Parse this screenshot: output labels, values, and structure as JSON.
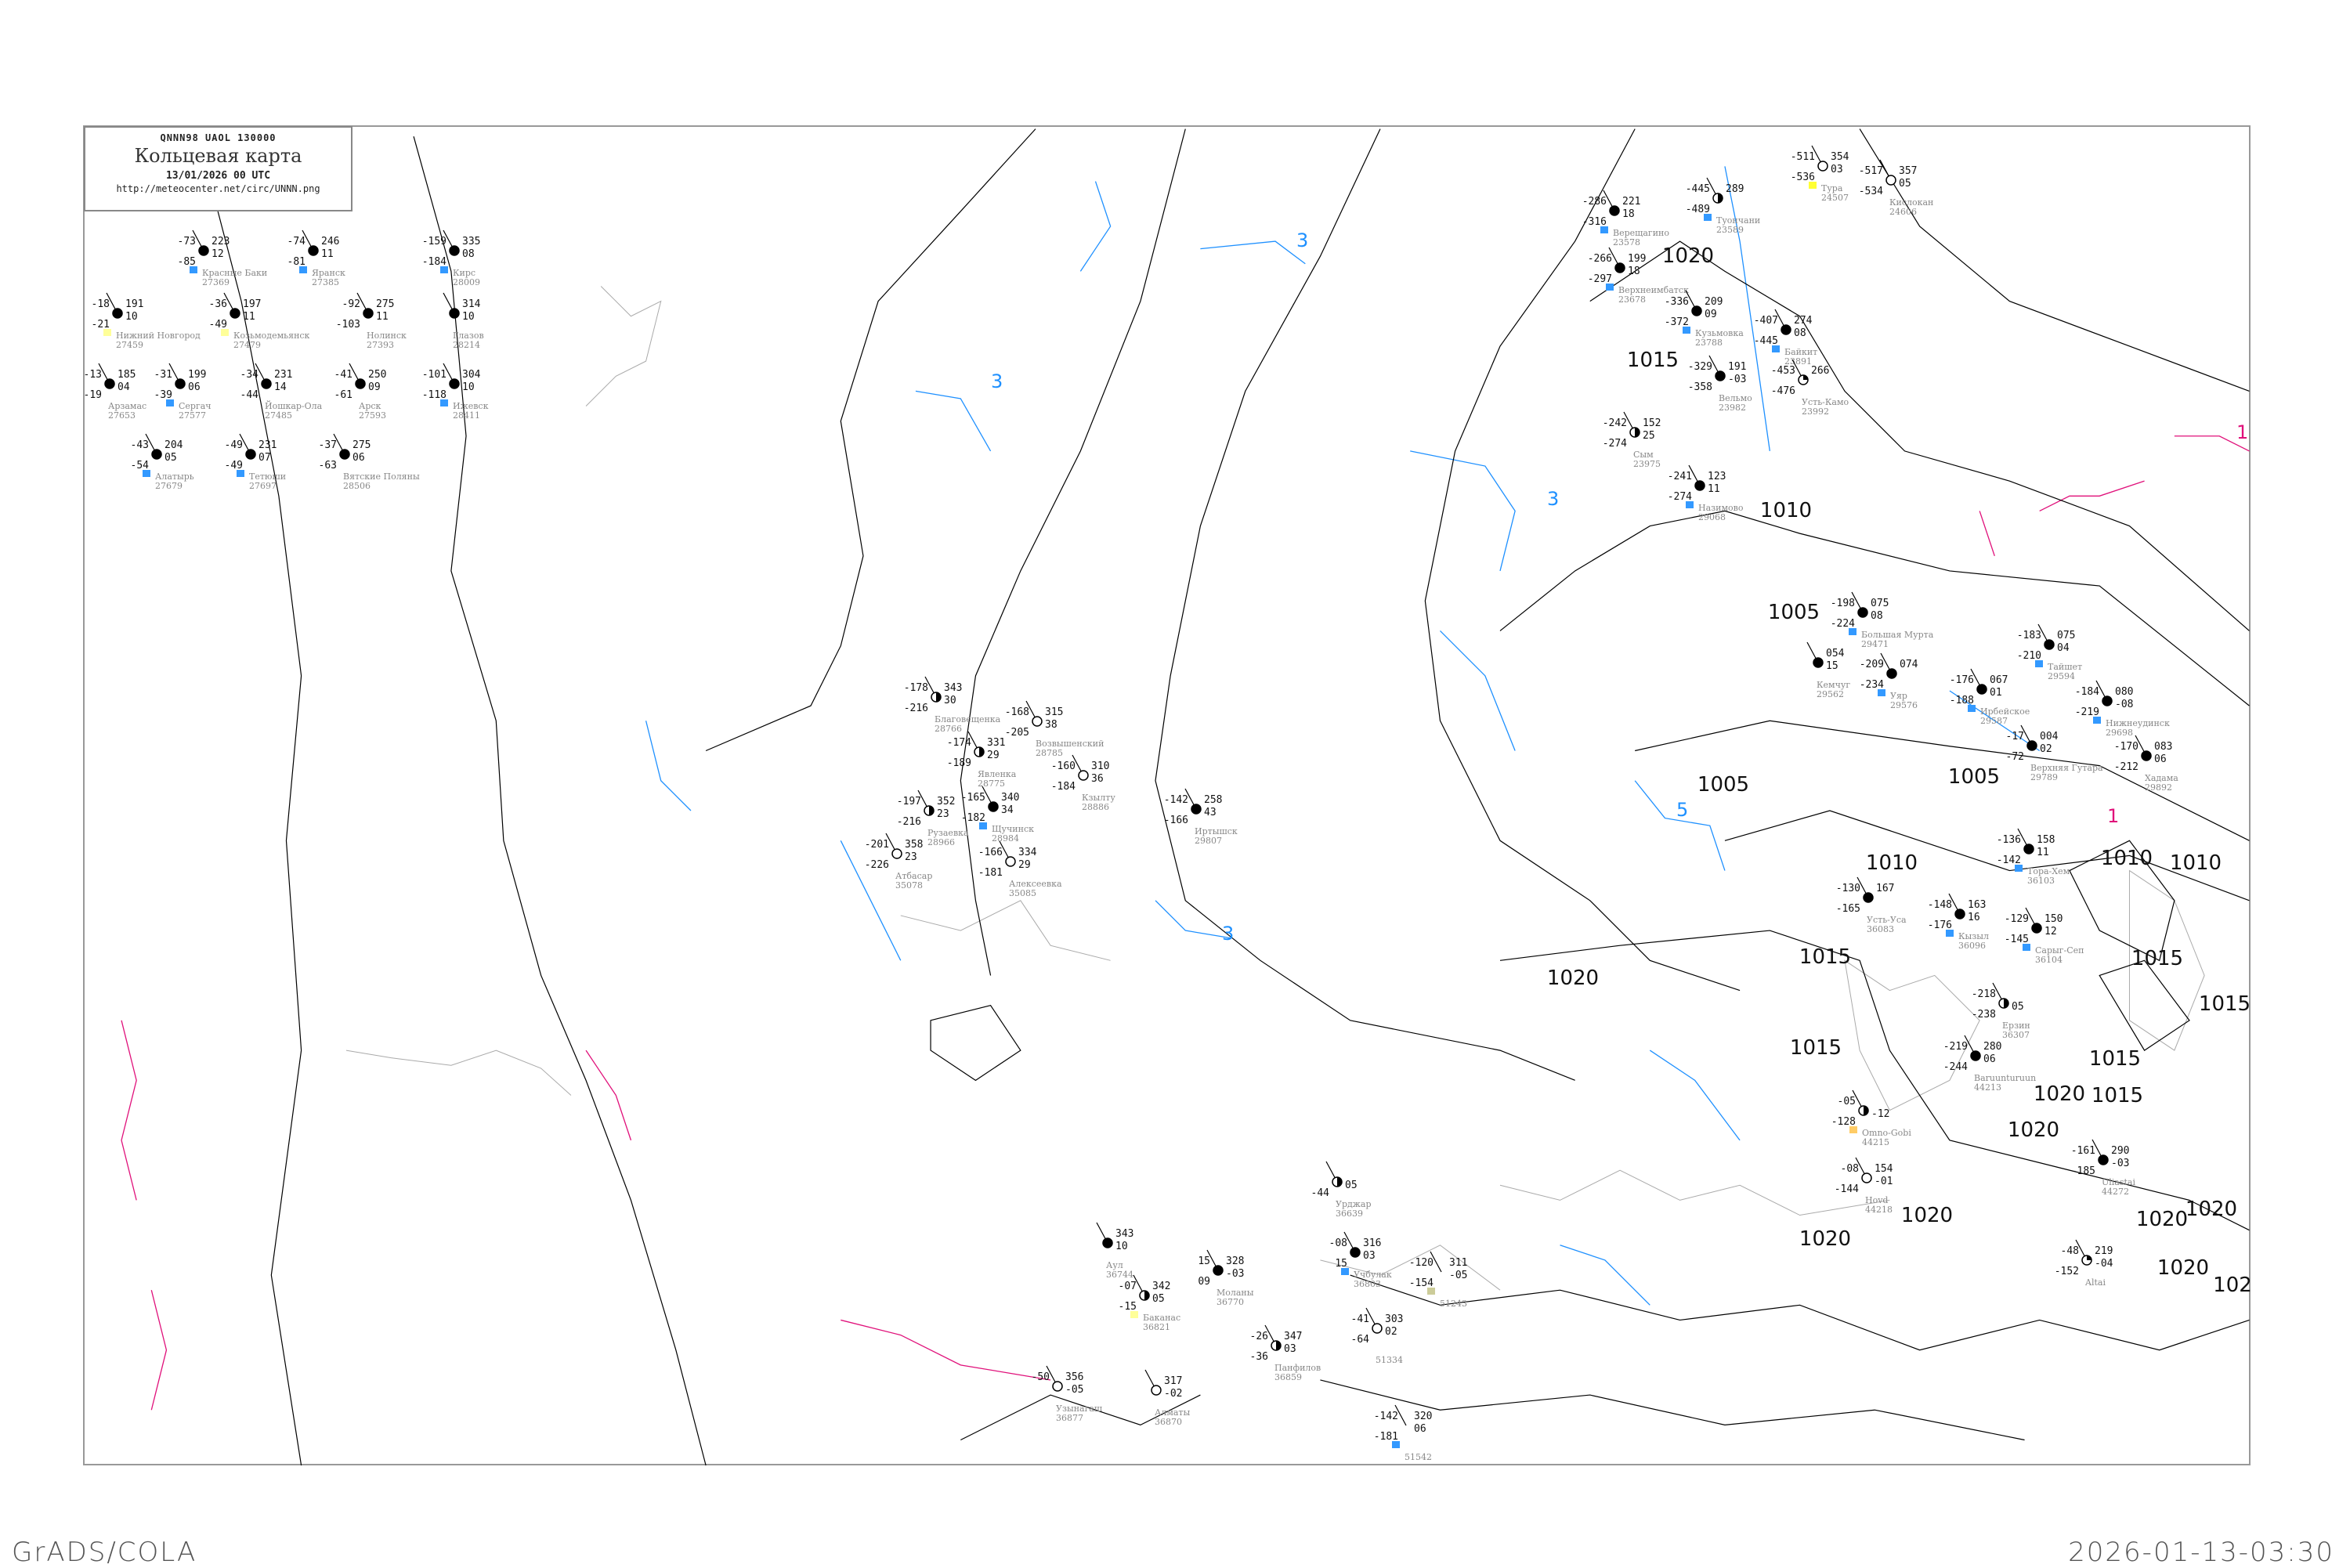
{
  "header": {
    "codes": "QNNN98   UAOL   130000",
    "title": "Кольцевая карта",
    "datetime": "13/01/2026 00 UTC",
    "url": "http://meteocenter.net/circ/UNNN.png"
  },
  "footer": {
    "left": "GrADS/COLA",
    "right": "2026-01-13-03:30"
  },
  "colors": {
    "isobar": "#000000",
    "isotherm_cold": "#1e90ff",
    "isotherm_warm": "#e0107a",
    "coast": "#aaaaaa",
    "station_name": "#888888",
    "precip_marker": "#3399ff"
  },
  "isobar_labels": [
    "1020",
    "1015",
    "1010",
    "1005",
    "1005",
    "1005",
    "1010",
    "1015",
    "1020",
    "1015",
    "1020",
    "1015",
    "1020",
    "1020",
    "102",
    "1015",
    "1010",
    "1010",
    "1015",
    "1015",
    "1020",
    "1020",
    "1020",
    "1020"
  ],
  "isotherm_labels": [
    "3",
    "3",
    "3",
    "5",
    "3",
    "1",
    "1"
  ],
  "stations": [
    {
      "name": "Нижний Новгород",
      "id": "27459",
      "t": "-18",
      "td": "-21",
      "p": "191",
      "dp": "10",
      "cover": "full",
      "marker": "#ffff99"
    },
    {
      "name": "Арзамас",
      "id": "27653",
      "t": "-13",
      "td": "-19",
      "p": "185",
      "dp": "04",
      "cover": "full"
    },
    {
      "name": "Красные Баки",
      "id": "27369",
      "t": "-73",
      "td": "-85",
      "p": "223",
      "dp": "12",
      "cover": "full",
      "marker": "#3399ff"
    },
    {
      "name": "Козьмодемьянск",
      "id": "27479",
      "t": "-36",
      "td": "-49",
      "p": "197",
      "dp": "11",
      "cover": "full",
      "marker": "#ffff99"
    },
    {
      "name": "Йошкар-Ола",
      "id": "27485",
      "t": "-34",
      "td": "-44",
      "p": "231",
      "dp": "14",
      "cover": "full"
    },
    {
      "name": "Сергач",
      "id": "27577",
      "t": "-31",
      "td": "-39",
      "p": "199",
      "dp": "06",
      "cover": "full",
      "marker": "#3399ff"
    },
    {
      "name": "Алатырь",
      "id": "27679",
      "t": "-43",
      "td": "-54",
      "p": "204",
      "dp": "05",
      "cover": "full",
      "marker": "#3399ff"
    },
    {
      "name": "Тетюши",
      "id": "27697",
      "t": "-49",
      "td": "-49",
      "p": "231",
      "dp": "07",
      "cover": "full",
      "marker": "#3399ff"
    },
    {
      "name": "Глазов",
      "id": "28214",
      "t": "",
      "td": "",
      "p": "314",
      "dp": "10",
      "cover": "full"
    },
    {
      "name": "Ижевск",
      "id": "28411",
      "t": "-101",
      "td": "-118",
      "p": "304",
      "dp": "10",
      "cover": "full",
      "marker": "#3399ff"
    },
    {
      "name": "Кирс",
      "id": "28009",
      "t": "-159",
      "td": "-184",
      "p": "335",
      "dp": "08",
      "cover": "full",
      "marker": "#3399ff"
    },
    {
      "name": "Нолинск",
      "id": "27393",
      "t": "-92",
      "td": "-103",
      "p": "275",
      "dp": "11",
      "cover": "full"
    },
    {
      "name": "Яранск",
      "id": "27385",
      "t": "-74",
      "td": "-81",
      "p": "246",
      "dp": "11",
      "cover": "full",
      "marker": "#3399ff"
    },
    {
      "name": "Арск",
      "id": "27593",
      "t": "-41",
      "td": "-61",
      "p": "250",
      "dp": "09",
      "cover": "full"
    },
    {
      "name": "Вятские Поляны",
      "id": "28506",
      "t": "-37",
      "td": "-63",
      "p": "275",
      "dp": "06",
      "cover": "full"
    },
    {
      "name": "Благовещенка",
      "id": "28766",
      "t": "-178",
      "td": "-216",
      "p": "343",
      "dp": "30",
      "cover": "half"
    },
    {
      "name": "Явленка",
      "id": "28775",
      "t": "-174",
      "td": "-189",
      "p": "331",
      "dp": "29",
      "cover": "half"
    },
    {
      "name": "Щучинск",
      "id": "28984",
      "t": "-165",
      "td": "-182",
      "p": "340",
      "dp": "34",
      "cover": "full",
      "marker": "#3399ff"
    },
    {
      "name": "Возвышенский",
      "id": "28785",
      "t": "-168",
      "td": "-205",
      "p": "315",
      "dp": "38",
      "cover": "empty"
    },
    {
      "name": "Кзылту",
      "id": "28886",
      "t": "-160",
      "td": "-184",
      "p": "310",
      "dp": "36",
      "cover": "empty"
    },
    {
      "name": "Рузаевка",
      "id": "28966",
      "t": "-197",
      "td": "-216",
      "p": "352",
      "dp": "23",
      "cover": "half"
    },
    {
      "name": "Атбасар",
      "id": "35078",
      "t": "-201",
      "td": "-226",
      "p": "358",
      "dp": "23",
      "cover": "empty"
    },
    {
      "name": "Алексеевка",
      "id": "35085",
      "t": "-166",
      "td": "-181",
      "p": "334",
      "dp": "29",
      "cover": "empty"
    },
    {
      "name": "Иртышск",
      "id": "29807",
      "t": "-142",
      "td": "-166",
      "p": "258",
      "dp": "43",
      "cover": "full"
    },
    {
      "name": "Верещагино",
      "id": "23578",
      "t": "-286",
      "td": "-316",
      "p": "221",
      "dp": "18",
      "cover": "full",
      "marker": "#3399ff"
    },
    {
      "name": "Верхнеимбатск",
      "id": "23678",
      "t": "-266",
      "td": "-297",
      "p": "199",
      "dp": "18",
      "cover": "full",
      "marker": "#3399ff"
    },
    {
      "name": "Туончани",
      "id": "23589",
      "t": "-445",
      "td": "-489",
      "p": "289",
      "dp": "",
      "cover": "half",
      "marker": "#3399ff"
    },
    {
      "name": "Кузьмовка",
      "id": "23788",
      "t": "-336",
      "td": "-372",
      "p": "209",
      "dp": "09",
      "cover": "full",
      "marker": "#3399ff"
    },
    {
      "name": "Байкит",
      "id": "23891",
      "t": "-407",
      "td": "-445",
      "p": "274",
      "dp": "08",
      "cover": "full",
      "marker": "#3399ff"
    },
    {
      "name": "Тура",
      "id": "24507",
      "t": "-511",
      "td": "-536",
      "p": "354",
      "dp": "03",
      "cover": "empty",
      "marker": "#ffff33"
    },
    {
      "name": "Кислокан",
      "id": "24606",
      "t": "-517",
      "td": "-534",
      "p": "357",
      "dp": "05",
      "cover": "empty"
    },
    {
      "name": "Усть-Камо",
      "id": "23992",
      "t": "-453",
      "td": "-476",
      "p": "266",
      "dp": "",
      "cover": "quarter"
    },
    {
      "name": "Вельмо",
      "id": "23982",
      "t": "-329",
      "td": "-358",
      "p": "191",
      "dp": "-03",
      "cover": "full"
    },
    {
      "name": "Сым",
      "id": "23975",
      "t": "-242",
      "td": "-274",
      "p": "152",
      "dp": "25",
      "cover": "half"
    },
    {
      "name": "Назимово",
      "id": "29068",
      "t": "-241",
      "td": "-274",
      "p": "123",
      "dp": "11",
      "cover": "full",
      "marker": "#3399ff"
    },
    {
      "name": "Большая Мурта",
      "id": "29471",
      "t": "-198",
      "td": "-224",
      "p": "075",
      "dp": "08",
      "cover": "full",
      "marker": "#3399ff"
    },
    {
      "name": "Уяр",
      "id": "29576",
      "t": "-209",
      "td": "-234",
      "p": "074",
      "dp": "",
      "cover": "full",
      "marker": "#3399ff"
    },
    {
      "name": "Ирбейское",
      "id": "29587",
      "t": "-176",
      "td": "-188",
      "p": "067",
      "dp": "01",
      "cover": "full",
      "marker": "#3399ff"
    },
    {
      "name": "Тайшет",
      "id": "29594",
      "t": "-183",
      "td": "-210",
      "p": "075",
      "dp": "04",
      "cover": "full",
      "marker": "#3399ff"
    },
    {
      "name": "Нижнеудинск",
      "id": "29698",
      "t": "-184",
      "td": "-219",
      "p": "080",
      "dp": "-08",
      "cover": "full",
      "marker": "#3399ff"
    },
    {
      "name": "Кемчуг",
      "id": "29562",
      "t": "",
      "td": "",
      "p": "054",
      "dp": "15",
      "cover": "full"
    },
    {
      "name": "Верхняя Гутара",
      "id": "29789",
      "t": "-17",
      "td": "-72",
      "p": "004",
      "dp": "02",
      "cover": "full"
    },
    {
      "name": "Хадама",
      "id": "29892",
      "t": "-170",
      "td": "-212",
      "p": "083",
      "dp": "06",
      "cover": "full"
    },
    {
      "name": "Тора-Хем",
      "id": "36103",
      "t": "-136",
      "td": "-142",
      "p": "158",
      "dp": "11",
      "cover": "full",
      "marker": "#3399ff"
    },
    {
      "name": "Кызыл",
      "id": "36096",
      "t": "-148",
      "td": "-176",
      "p": "163",
      "dp": "16",
      "cover": "full",
      "marker": "#3399ff"
    },
    {
      "name": "Сарыг-Сеп",
      "id": "36104",
      "t": "-129",
      "td": "-145",
      "p": "150",
      "dp": "12",
      "cover": "full",
      "marker": "#3399ff"
    },
    {
      "name": "Усть-Уса",
      "id": "36083",
      "t": "-130",
      "td": "-165",
      "p": "167",
      "dp": "",
      "cover": "full"
    },
    {
      "name": "Ерзин",
      "id": "36307",
      "t": "-218",
      "td": "-238",
      "p": "",
      "dp": "05",
      "cover": "half"
    },
    {
      "name": "Baruunturuun",
      "id": "44213",
      "t": "-219",
      "td": "-244",
      "p": "280",
      "dp": "06",
      "cover": "full"
    },
    {
      "name": "Uliastai",
      "id": "44272",
      "t": "-161",
      "td": "-185",
      "p": "290",
      "dp": "-03",
      "cover": "full"
    },
    {
      "name": "Altai",
      "id": "",
      "t": "-48",
      "td": "-152",
      "p": "219",
      "dp": "-04",
      "cover": "quarter"
    },
    {
      "name": "Hovd",
      "id": "44218",
      "t": "-08",
      "td": "-144",
      "p": "154",
      "dp": "-01",
      "cover": "empty"
    },
    {
      "name": "Omno-Gobi",
      "id": "44215",
      "t": "-05",
      "td": "-128",
      "p": "",
      "dp": "-12",
      "cover": "half",
      "marker": "#ffcc66"
    },
    {
      "name": "Аул",
      "id": "36744",
      "t": "",
      "td": "",
      "p": "343",
      "dp": "10",
      "cover": "full"
    },
    {
      "name": "Баканас",
      "id": "36821",
      "t": "-07",
      "td": "-15",
      "p": "342",
      "dp": "05",
      "cover": "half",
      "marker": "#ffff99"
    },
    {
      "name": "Моланы",
      "id": "36770",
      "t": "15",
      "td": "09",
      "p": "328",
      "dp": "-03",
      "cover": "full"
    },
    {
      "name": "Урджар",
      "id": "36639",
      "t": "",
      "td": "-44",
      "p": "",
      "dp": "05",
      "cover": "half"
    },
    {
      "name": "Учбулак",
      "id": "36803",
      "t": "-08",
      "td": "15",
      "p": "316",
      "dp": "03",
      "cover": "full",
      "marker": "#3399ff"
    },
    {
      "name": "Панфилов",
      "id": "36859",
      "t": "-26",
      "td": "-36",
      "p": "347",
      "dp": "03",
      "cover": "half"
    },
    {
      "name": "Алматы",
      "id": "36870",
      "t": "",
      "td": "",
      "p": "317",
      "dp": "-02",
      "cover": "empty"
    },
    {
      "name": "Узынагаш",
      "id": "36877",
      "t": "-50",
      "td": "",
      "p": "356",
      "dp": "-05",
      "cover": "empty"
    },
    {
      "name": "",
      "id": "51243",
      "t": "-120",
      "td": "-154",
      "p": "311",
      "dp": "-05",
      "cover": "",
      "marker": "#cccc99"
    },
    {
      "name": "",
      "id": "51334",
      "t": "-41",
      "td": "-64",
      "p": "303",
      "dp": "02",
      "cover": "empty"
    },
    {
      "name": "",
      "id": "51542",
      "t": "-142",
      "td": "-181",
      "p": "320",
      "dp": "06",
      "cover": "",
      "marker": "#3399ff"
    }
  ]
}
